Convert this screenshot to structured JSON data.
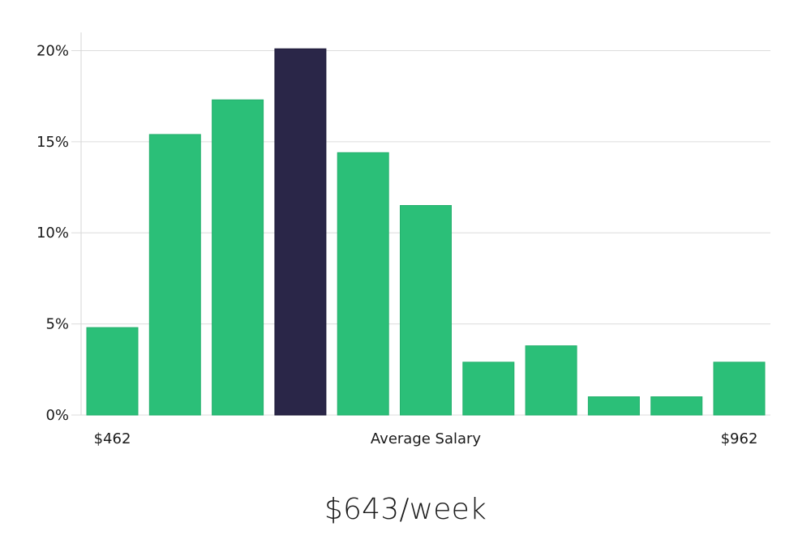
{
  "chart_data": {
    "type": "bar",
    "values": [
      4.8,
      15.4,
      17.3,
      20.1,
      14.4,
      11.5,
      2.9,
      3.8,
      1.0,
      1.0,
      2.9
    ],
    "highlight_index": 3,
    "ylim": [
      0,
      21
    ],
    "yticks": [
      0,
      5,
      10,
      15,
      20
    ],
    "ytick_labels": [
      "0%",
      "5%",
      "10%",
      "15%",
      "20%"
    ],
    "x_min_label": "$462",
    "x_max_label": "$962",
    "xlabel": "Average Salary",
    "grid": true,
    "colors": {
      "bar": "#2bbf78",
      "highlight": "#2a2648",
      "grid": "#dcdcdc"
    }
  },
  "headline": "$643/week"
}
